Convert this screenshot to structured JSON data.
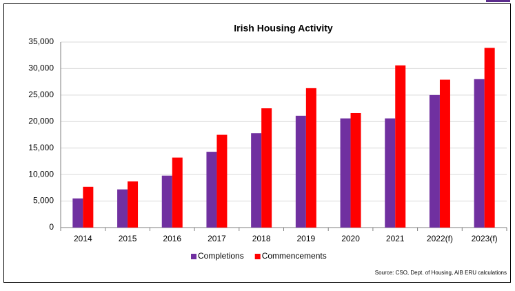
{
  "chart_data": {
    "type": "bar",
    "title": "Irish Housing Activity",
    "categories": [
      "2014",
      "2015",
      "2016",
      "2017",
      "2018",
      "2019",
      "2020",
      "2021",
      "2022(f)",
      "2023(f)"
    ],
    "series": [
      {
        "name": "Completions",
        "color": "#7030a0",
        "values": [
          5500,
          7200,
          9800,
          14300,
          17800,
          21100,
          20600,
          20600,
          25000,
          28000
        ]
      },
      {
        "name": "Commencements",
        "color": "#ff0000",
        "values": [
          7700,
          8700,
          13200,
          17500,
          22500,
          26300,
          21600,
          30600,
          27900,
          33900
        ]
      }
    ],
    "ylim": [
      0,
      35000
    ],
    "yticks": [
      0,
      {
        "value": 5000,
        "label": "5,000"
      },
      {
        "value": 10000,
        "label": "10,000"
      },
      {
        "value": 15000,
        "label": "15,000"
      },
      {
        "value": 20000,
        "label": "20,000"
      },
      {
        "value": 25000,
        "label": "25,000"
      },
      {
        "value": 30000,
        "label": "30,000"
      },
      {
        "value": 35000,
        "label": "35,000"
      }
    ],
    "grid": true,
    "legend": "bottom",
    "source": "Source: CSO, Dept. of Housing, AIB ERU calculations"
  }
}
